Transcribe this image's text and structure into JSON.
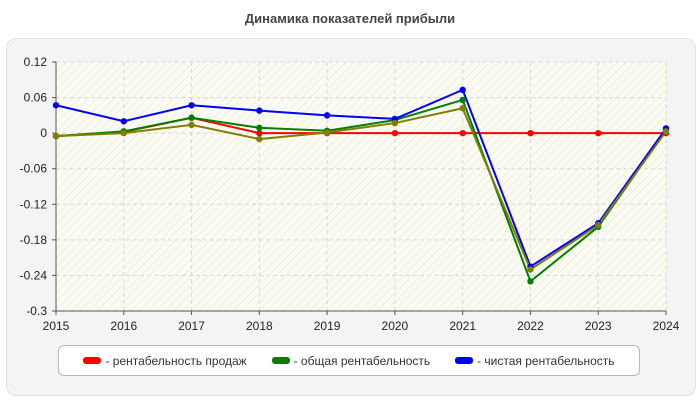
{
  "chart_data": {
    "type": "line",
    "title": "Динамика показателей прибыли",
    "xlabel": "",
    "ylabel": "",
    "x": [
      2015,
      2016,
      2017,
      2018,
      2019,
      2020,
      2021,
      2022,
      2023,
      2024
    ],
    "x_tick_labels": [
      "2015",
      "2016",
      "2017",
      "2018",
      "2019",
      "2020",
      "2021",
      "2022",
      "2023",
      "2024"
    ],
    "ylim": [
      -0.3,
      0.12
    ],
    "y_ticks": [
      0.12,
      0.06,
      0,
      -0.06,
      -0.12,
      -0.18,
      -0.24,
      -0.3
    ],
    "y_tick_labels": [
      "0.12",
      "0.06",
      "0",
      "-0.06",
      "-0.12",
      "-0.18",
      "-0.24",
      "-0.3"
    ],
    "grid": true,
    "legend_position": "bottom",
    "series": [
      {
        "name": "- рентабельность продаж",
        "color": "#ff0000",
        "values": [
          -0.005,
          0.002,
          0.026,
          0.0,
          0.0,
          0.0,
          0.0,
          0.0,
          0.0,
          0.0
        ]
      },
      {
        "name": "- общая рентабельность",
        "color": "#008000",
        "values": [
          -0.005,
          0.003,
          0.026,
          0.009,
          0.004,
          0.022,
          0.056,
          -0.25,
          -0.158,
          0.005
        ]
      },
      {
        "name": "- чистая рентабельность",
        "color": "#0000ff",
        "values": [
          0.047,
          0.02,
          0.047,
          0.038,
          0.03,
          0.024,
          0.073,
          -0.225,
          -0.152,
          0.008
        ]
      },
      {
        "name": "",
        "color": "#808000",
        "values": [
          -0.005,
          0.0,
          0.014,
          -0.01,
          0.001,
          0.017,
          0.042,
          -0.23,
          -0.155,
          0.003
        ]
      }
    ]
  }
}
